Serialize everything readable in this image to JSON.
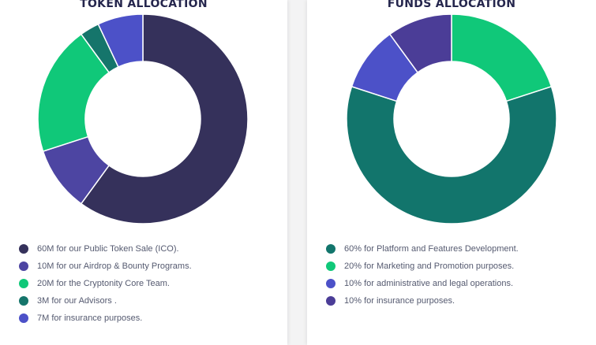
{
  "chart_data": [
    {
      "type": "pie",
      "title": "TOKEN ALLOCATION",
      "categories": [
        "60M for our Public Token Sale (ICO).",
        "10M for our Airdrop & Bounty Programs.",
        "20M for the Cryptonity Core Team.",
        "3M for our Advisors .",
        "7M for insurance purposes."
      ],
      "values": [
        60,
        10,
        20,
        3,
        7
      ],
      "colors": [
        "#35315b",
        "#4d45a2",
        "#10c879",
        "#15756b",
        "#4c51c8"
      ],
      "legend": "bottom"
    },
    {
      "type": "pie",
      "title": "FUNDS ALLOCATION",
      "categories": [
        "60% for Platform and Features Development.",
        "20% for Marketing and Promotion purposes.",
        "10% for administrative and legal operations.",
        "10% for insurance purposes."
      ],
      "values": [
        60,
        20,
        10,
        10
      ],
      "colors": [
        "#12756c",
        "#10c879",
        "#4c51c8",
        "#4b3d97"
      ],
      "legend": "bottom",
      "slice_order": [
        1,
        0,
        2,
        3
      ]
    }
  ]
}
